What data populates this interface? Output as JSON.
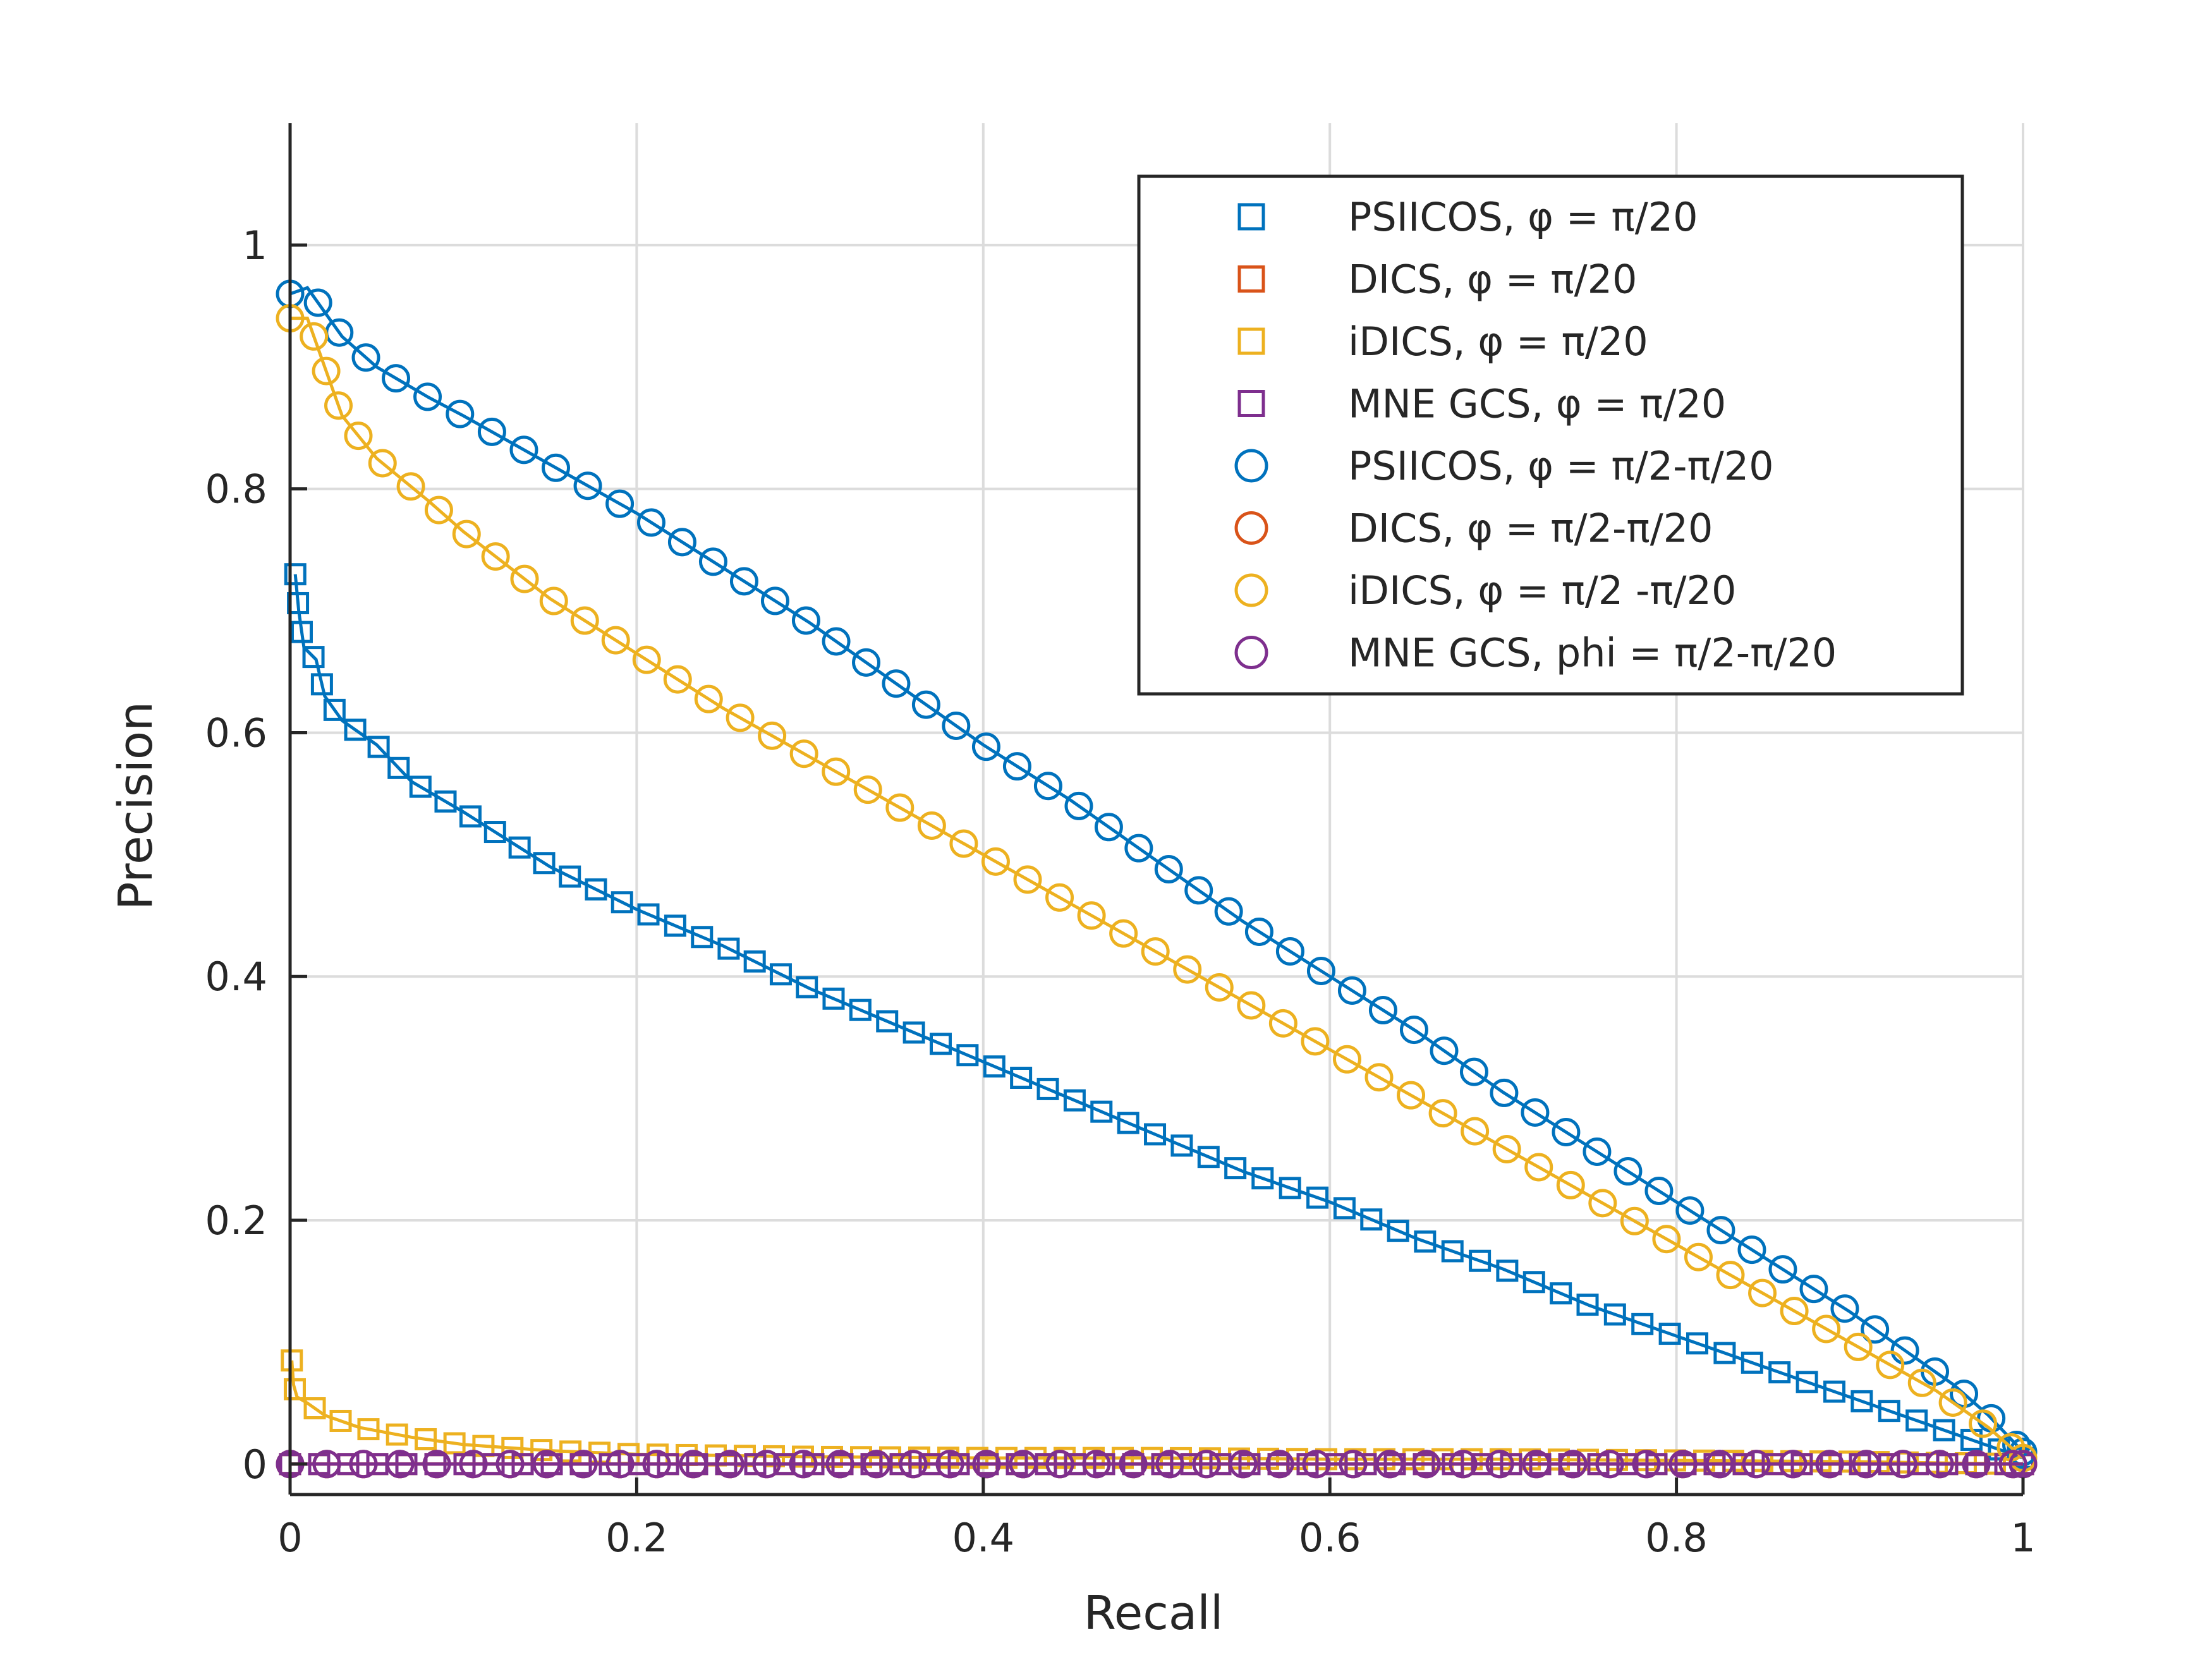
{
  "chart_data": {
    "type": "line",
    "xlabel": "Recall",
    "ylabel": "Precision",
    "xlim": [
      0,
      1
    ],
    "ylim": [
      -0.025,
      1.1
    ],
    "x_ticks": [
      0,
      0.2,
      0.4,
      0.6,
      0.8,
      1
    ],
    "x_tick_labels": [
      "0",
      "0.2",
      "0.4",
      "0.6",
      "0.8",
      "1"
    ],
    "y_ticks": [
      0,
      0.2,
      0.4,
      0.6,
      0.8,
      1
    ],
    "y_tick_labels": [
      "0",
      "0.2",
      "0.4",
      "0.6",
      "0.8",
      "1"
    ],
    "grid": true,
    "legend_position": "top-right",
    "series": [
      {
        "name": "PSIICOS, φ = π/20",
        "marker": "square",
        "color": "#0072BD",
        "points": [
          [
            0.003,
            0.73
          ],
          [
            0.005,
            0.7
          ],
          [
            0.008,
            0.67
          ],
          [
            0.015,
            0.66
          ],
          [
            0.02,
            0.63
          ],
          [
            0.03,
            0.61
          ],
          [
            0.05,
            0.59
          ],
          [
            0.07,
            0.56
          ],
          [
            0.1,
            0.535
          ],
          [
            0.15,
            0.49
          ],
          [
            0.2,
            0.455
          ],
          [
            0.25,
            0.425
          ],
          [
            0.3,
            0.39
          ],
          [
            0.35,
            0.36
          ],
          [
            0.4,
            0.33
          ],
          [
            0.45,
            0.3
          ],
          [
            0.5,
            0.27
          ],
          [
            0.55,
            0.24
          ],
          [
            0.6,
            0.215
          ],
          [
            0.65,
            0.185
          ],
          [
            0.7,
            0.16
          ],
          [
            0.75,
            0.13
          ],
          [
            0.8,
            0.105
          ],
          [
            0.85,
            0.08
          ],
          [
            0.9,
            0.055
          ],
          [
            0.95,
            0.03
          ],
          [
            0.98,
            0.015
          ],
          [
            1.0,
            0.005
          ]
        ]
      },
      {
        "name": "DICS, φ =   π/20",
        "marker": "square",
        "color": "#D95319",
        "points": [
          [
            0.0,
            0.0
          ],
          [
            0.05,
            0.0
          ],
          [
            0.2,
            0.0
          ],
          [
            0.4,
            0.0
          ],
          [
            0.6,
            0.0
          ],
          [
            0.8,
            0.0
          ],
          [
            1.0,
            0.0
          ]
        ]
      },
      {
        "name": "iDICS, φ =  π/20",
        "marker": "square",
        "color": "#EDB120",
        "points": [
          [
            0.001,
            0.085
          ],
          [
            0.002,
            0.065
          ],
          [
            0.004,
            0.055
          ],
          [
            0.01,
            0.05
          ],
          [
            0.02,
            0.04
          ],
          [
            0.04,
            0.03
          ],
          [
            0.07,
            0.022
          ],
          [
            0.1,
            0.016
          ],
          [
            0.15,
            0.011
          ],
          [
            0.2,
            0.008
          ],
          [
            0.3,
            0.006
          ],
          [
            0.4,
            0.005
          ],
          [
            0.5,
            0.005
          ],
          [
            0.6,
            0.004
          ],
          [
            0.7,
            0.004
          ],
          [
            0.8,
            0.003
          ],
          [
            0.9,
            0.002
          ],
          [
            1.0,
            0.0
          ]
        ]
      },
      {
        "name": "MNE GCS, φ = π/20",
        "marker": "square",
        "color": "#7E2F8E",
        "points": [
          [
            0.0,
            0.0
          ],
          [
            0.2,
            0.0
          ],
          [
            0.4,
            0.0
          ],
          [
            0.6,
            0.0
          ],
          [
            0.8,
            0.0
          ],
          [
            1.0,
            0.0
          ]
        ]
      },
      {
        "name": "PSIICOS, φ = π/2-π/20",
        "marker": "circle",
        "color": "#0072BD",
        "points": [
          [
            0.0,
            0.96
          ],
          [
            0.01,
            0.965
          ],
          [
            0.02,
            0.945
          ],
          [
            0.03,
            0.925
          ],
          [
            0.05,
            0.9
          ],
          [
            0.08,
            0.875
          ],
          [
            0.1,
            0.86
          ],
          [
            0.15,
            0.82
          ],
          [
            0.2,
            0.78
          ],
          [
            0.25,
            0.735
          ],
          [
            0.3,
            0.69
          ],
          [
            0.35,
            0.64
          ],
          [
            0.4,
            0.59
          ],
          [
            0.45,
            0.545
          ],
          [
            0.5,
            0.495
          ],
          [
            0.55,
            0.445
          ],
          [
            0.6,
            0.4
          ],
          [
            0.65,
            0.355
          ],
          [
            0.7,
            0.305
          ],
          [
            0.75,
            0.26
          ],
          [
            0.8,
            0.215
          ],
          [
            0.85,
            0.17
          ],
          [
            0.9,
            0.125
          ],
          [
            0.93,
            0.095
          ],
          [
            0.96,
            0.065
          ],
          [
            0.98,
            0.04
          ],
          [
            1.0,
            0.01
          ]
        ]
      },
      {
        "name": "DICS, φ = π/2-π/20",
        "marker": "circle",
        "color": "#D95319",
        "points": [
          [
            0.0,
            0.0
          ],
          [
            0.2,
            0.0
          ],
          [
            0.4,
            0.0
          ],
          [
            0.6,
            0.0
          ],
          [
            0.8,
            0.0
          ],
          [
            1.0,
            0.0
          ]
        ]
      },
      {
        "name": "iDICS, φ = π/2 -π/20",
        "marker": "circle",
        "color": "#EDB120",
        "points": [
          [
            0.0,
            0.94
          ],
          [
            0.01,
            0.94
          ],
          [
            0.02,
            0.9
          ],
          [
            0.03,
            0.86
          ],
          [
            0.05,
            0.825
          ],
          [
            0.08,
            0.79
          ],
          [
            0.1,
            0.765
          ],
          [
            0.15,
            0.71
          ],
          [
            0.2,
            0.665
          ],
          [
            0.25,
            0.62
          ],
          [
            0.3,
            0.58
          ],
          [
            0.35,
            0.54
          ],
          [
            0.4,
            0.5
          ],
          [
            0.45,
            0.46
          ],
          [
            0.5,
            0.42
          ],
          [
            0.55,
            0.38
          ],
          [
            0.6,
            0.34
          ],
          [
            0.65,
            0.3
          ],
          [
            0.7,
            0.26
          ],
          [
            0.75,
            0.22
          ],
          [
            0.8,
            0.18
          ],
          [
            0.85,
            0.14
          ],
          [
            0.9,
            0.1
          ],
          [
            0.95,
            0.06
          ],
          [
            0.98,
            0.03
          ],
          [
            1.0,
            0.005
          ]
        ]
      },
      {
        "name": "MNE GCS, phi = π/2-π/20",
        "marker": "circle",
        "color": "#7E2F8E",
        "points": [
          [
            0.0,
            0.0
          ],
          [
            0.2,
            0.0
          ],
          [
            0.4,
            0.0
          ],
          [
            0.6,
            0.0
          ],
          [
            0.8,
            0.0
          ],
          [
            1.0,
            0.0
          ]
        ]
      }
    ]
  }
}
